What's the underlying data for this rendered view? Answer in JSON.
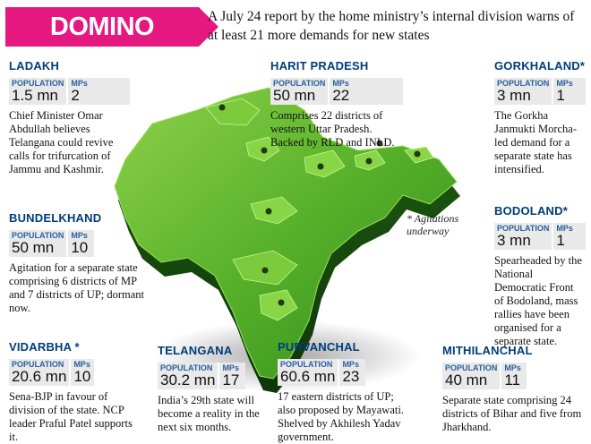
{
  "header": {
    "title": "DOMINO EFFECT",
    "intro": "A July 24 report by the home ministry’s internal division warns of at least 21 more demands for new states"
  },
  "labels": {
    "population": "POPULATION",
    "mps": "MPs"
  },
  "note": "* Agitations underway",
  "regions": [
    {
      "name": "LADAKH",
      "population": "1.5 mn",
      "mps": "2",
      "desc": "Chief Minister Omar Abdullah believes Telangana could revive calls for trifurcation of Jammu and Kashmir."
    },
    {
      "name": "HARIT PRADESH",
      "population": "50 mn",
      "mps": "22",
      "desc": "Comprises 22 districts of western Uttar Pradesh. Backed by RLD and INLD."
    },
    {
      "name": "GORKHALAND*",
      "population": "3 mn",
      "mps": "1",
      "desc": "The Gorkha Janmukti Morcha-led demand for a separate state has intensified."
    },
    {
      "name": "BUNDELKHAND",
      "population": "50 mn",
      "mps": "10",
      "desc": "Agitation for a separate state comprising 6 districts of MP and 7 districts of UP; dormant now."
    },
    {
      "name": "BODOLAND*",
      "population": "3 mn",
      "mps": "1",
      "desc": "Spearheaded by the National Democratic Front of Bodoland, mass rallies have been organised for a separate state."
    },
    {
      "name": "VIDARBHA *",
      "population": "20.6 mn",
      "mps": "10",
      "desc": "Sena-BJP in favour of division of the state. NCP leader Praful Patel supports it."
    },
    {
      "name": "TELANGANA",
      "population": "30.2 mn",
      "mps": "17",
      "desc": "India’s 29th state will become a reality in the next six months."
    },
    {
      "name": "PURVANCHAL",
      "population": "60.6 mn",
      "mps": "23",
      "desc": "17 eastern districts of UP; also proposed by Mayawati. Shelved by Akhilesh Yadav government."
    },
    {
      "name": "MITHILANCHAL",
      "population": "40 mn",
      "mps": "11",
      "desc": "Separate state comprising 24 districts of Bihar and five from Jharkhand."
    }
  ]
}
